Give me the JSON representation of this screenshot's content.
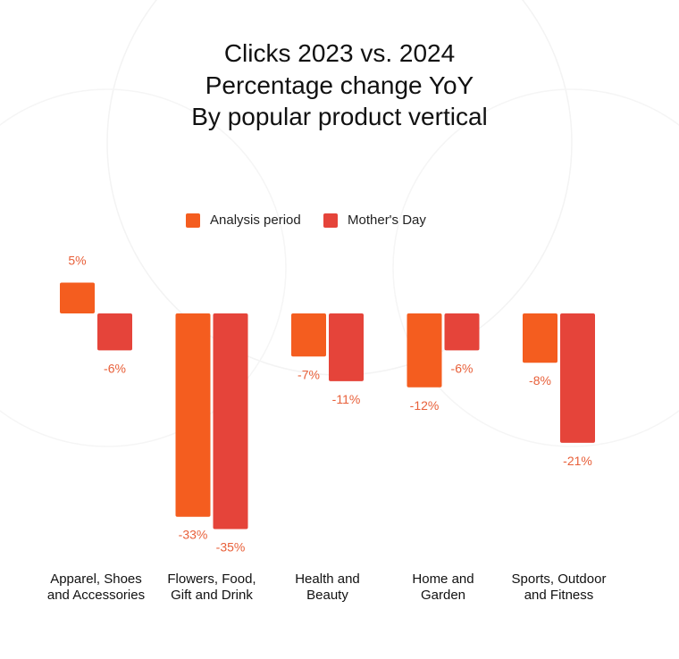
{
  "chart_data": {
    "type": "bar",
    "title": [
      "Clicks 2023 vs. 2024",
      "Percentage change YoY",
      "By popular product vertical"
    ],
    "categories": [
      [
        "Apparel, Shoes",
        "and Accessories"
      ],
      [
        "Flowers, Food,",
        "Gift and Drink"
      ],
      [
        "Health and",
        "Beauty"
      ],
      [
        "Home and",
        "Garden"
      ],
      [
        "Sports, Outdoor",
        "and Fitness"
      ]
    ],
    "series": [
      {
        "name": "Analysis period",
        "color": "#f45d1f",
        "values": [
          5,
          -33,
          -7,
          -12,
          -8
        ]
      },
      {
        "name": "Mother's Day",
        "color": "#e5443a",
        "values": [
          -6,
          -35,
          -11,
          -6,
          -21
        ]
      }
    ],
    "value_suffix": "%",
    "label_color": "#e8603a",
    "legend_position": "top",
    "grid": false,
    "ylim": [
      -36,
      6
    ]
  }
}
